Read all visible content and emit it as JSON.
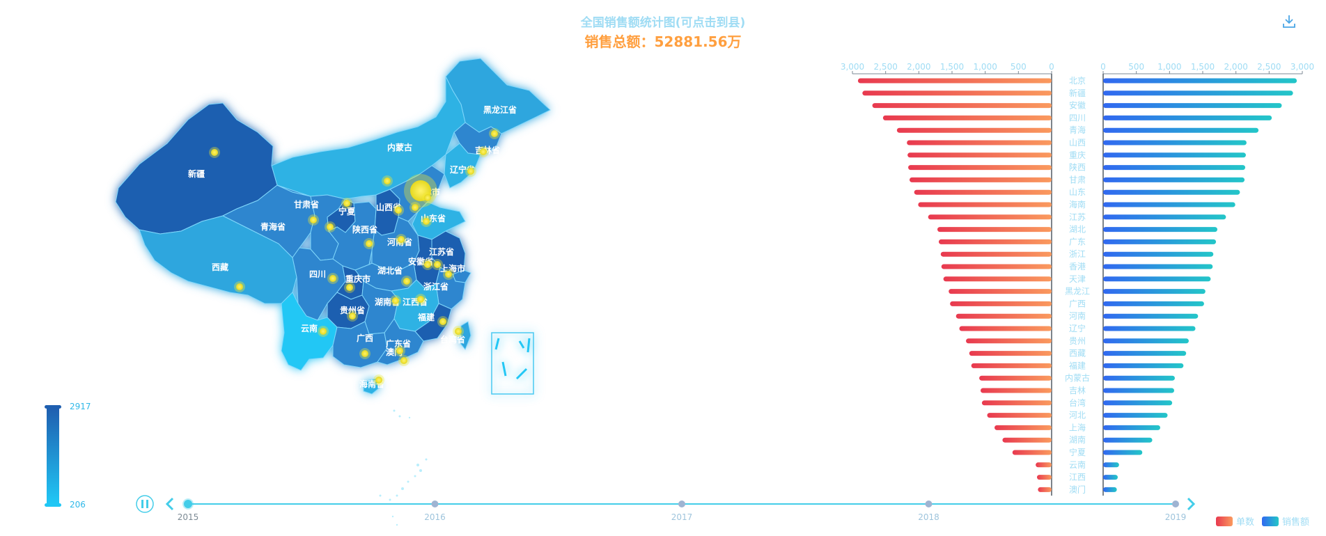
{
  "header": {
    "title": "全国销售额统计图(可点击到县)",
    "subtitle": "销售总额：52881.56万"
  },
  "toolbar": {
    "download_icon": "download-icon"
  },
  "visual_map": {
    "max_label": "2917",
    "min_label": "206",
    "color_max": "#1f5fb0",
    "color_min": "#20c7f5"
  },
  "timeline": {
    "years": [
      "2015",
      "2016",
      "2017",
      "2018",
      "2019"
    ],
    "current_index": 0,
    "playing": true,
    "color": "#43cde9"
  },
  "map": {
    "region_labels": [
      "黑龙江省",
      "吉林省",
      "辽宁省",
      "内蒙古",
      "新疆",
      "甘肃省",
      "青海省",
      "宁夏",
      "山西省",
      "陕西省",
      "河南省",
      "山东省",
      "江苏省",
      "安徽省",
      "上海市",
      "湖北省",
      "四川",
      "重庆市",
      "浙江省",
      "湖南省",
      "江西省",
      "贵州省",
      "云南",
      "西藏",
      "广西",
      "广东省",
      "福建",
      "台湾省",
      "海南省",
      "天津市",
      "澳门"
    ],
    "colors": {
      "dark": "#1f5fb0",
      "mid": "#2f86cf",
      "light": "#2fb2e4",
      "cyan": "#20c7f5",
      "marker": "#f5ea2a"
    }
  },
  "chart_data": {
    "type": "bar",
    "categories": [
      "北京",
      "新疆",
      "安徽",
      "四川",
      "青海",
      "山西",
      "重庆",
      "陕西",
      "甘肃",
      "山东",
      "海南",
      "江苏",
      "湖北",
      "广东",
      "浙江",
      "香港",
      "天津",
      "黑龙江",
      "广西",
      "河南",
      "辽宁",
      "贵州",
      "西藏",
      "福建",
      "内蒙古",
      "吉林",
      "台湾",
      "河北",
      "上海",
      "湖南",
      "宁夏",
      "云南",
      "江西",
      "澳门"
    ],
    "series": [
      {
        "name": "单数",
        "values": [
          2917,
          2850,
          2700,
          2540,
          2330,
          2180,
          2170,
          2160,
          2140,
          2070,
          2010,
          1860,
          1720,
          1700,
          1670,
          1660,
          1630,
          1550,
          1530,
          1440,
          1390,
          1290,
          1240,
          1210,
          1090,
          1070,
          1050,
          970,
          860,
          740,
          590,
          240,
          220,
          206
        ]
      },
      {
        "name": "销售额",
        "values": [
          2917,
          2860,
          2690,
          2540,
          2340,
          2160,
          2150,
          2140,
          2130,
          2060,
          1990,
          1850,
          1720,
          1700,
          1660,
          1650,
          1620,
          1540,
          1520,
          1430,
          1390,
          1290,
          1250,
          1210,
          1080,
          1070,
          1040,
          970,
          860,
          740,
          590,
          240,
          220,
          206
        ]
      }
    ],
    "xlim": [
      0,
      3000
    ],
    "ticks": [
      "3,000",
      "2,500",
      "2,000",
      "1,500",
      "1,000",
      "500",
      "0"
    ],
    "ticks_right": [
      "0",
      "500",
      "1,000",
      "1,500",
      "2,000",
      "2,500",
      "3,000"
    ],
    "legend_placement": "bottom-right",
    "colors": {
      "left_start": "#e8394f",
      "left_end": "#fa9a5e",
      "right_start": "#3168f0",
      "right_end": "#23c6c8"
    }
  }
}
